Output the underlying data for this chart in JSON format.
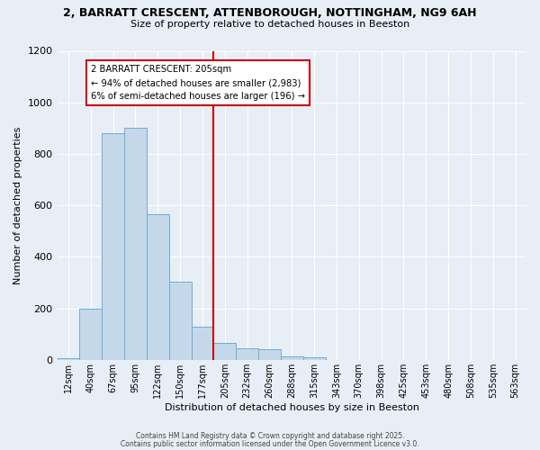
{
  "title": "2, BARRATT CRESCENT, ATTENBOROUGH, NOTTINGHAM, NG9 6AH",
  "subtitle": "Size of property relative to detached houses in Beeston",
  "xlabel": "Distribution of detached houses by size in Beeston",
  "ylabel": "Number of detached properties",
  "bar_color": "#c5d8ea",
  "bar_edge_color": "#6aafd4",
  "background_color": "#e8eef5",
  "gridcolor": "#ffffff",
  "categories": [
    "12sqm",
    "40sqm",
    "67sqm",
    "95sqm",
    "122sqm",
    "150sqm",
    "177sqm",
    "205sqm",
    "232sqm",
    "260sqm",
    "288sqm",
    "315sqm",
    "343sqm",
    "370sqm",
    "398sqm",
    "425sqm",
    "453sqm",
    "480sqm",
    "508sqm",
    "535sqm",
    "563sqm"
  ],
  "values": [
    5,
    200,
    880,
    900,
    565,
    305,
    130,
    65,
    45,
    40,
    15,
    10,
    0,
    0,
    0,
    0,
    0,
    0,
    0,
    0,
    0
  ],
  "vline_idx": 7,
  "vline_color": "#cc0000",
  "annotation_title": "2 BARRATT CRESCENT: 205sqm",
  "annotation_line1": "← 94% of detached houses are smaller (2,983)",
  "annotation_line2": "6% of semi-detached houses are larger (196) →",
  "annotation_box_color": "#ffffff",
  "annotation_box_edge": "#cc0000",
  "ylim": [
    0,
    1200
  ],
  "yticks": [
    0,
    200,
    400,
    600,
    800,
    1000,
    1200
  ],
  "footer1": "Contains HM Land Registry data © Crown copyright and database right 2025.",
  "footer2": "Contains public sector information licensed under the Open Government Licence v3.0."
}
